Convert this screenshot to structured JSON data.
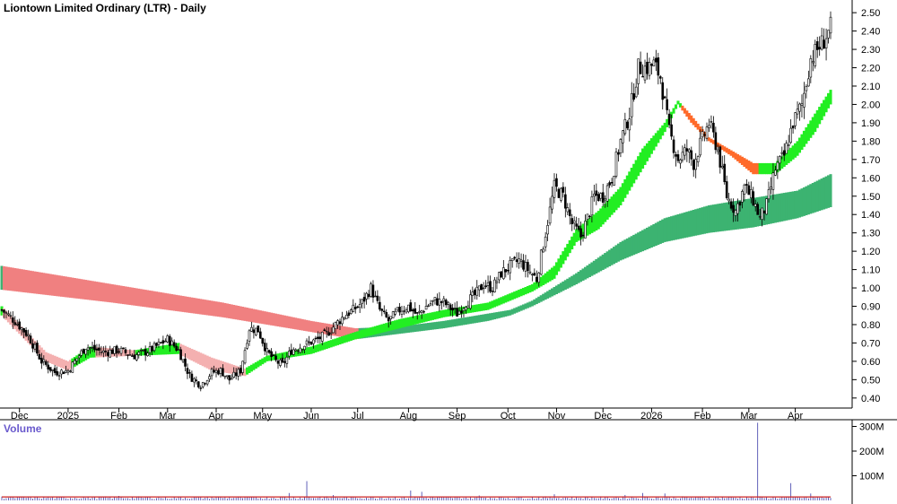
{
  "chart_data": {
    "type": "candlestick",
    "title": "Liontown Limited Ordinary (LTR) - Daily",
    "price_axis": {
      "ylim": [
        0.36,
        2.53
      ],
      "ticks": [
        "2.50",
        "2.40",
        "2.30",
        "2.20",
        "2.10",
        "2.00",
        "1.90",
        "1.80",
        "1.70",
        "1.60",
        "1.50",
        "1.40",
        "1.30",
        "1.20",
        "1.10",
        "1.00",
        "0.90",
        "0.80",
        "0.70",
        "0.60",
        "0.50",
        "0.40"
      ],
      "tick_values": [
        2.5,
        2.4,
        2.3,
        2.2,
        2.1,
        2.0,
        1.9,
        1.8,
        1.7,
        1.6,
        1.5,
        1.4,
        1.3,
        1.2,
        1.1,
        1.0,
        0.9,
        0.8,
        0.7,
        0.6,
        0.5,
        0.4
      ]
    },
    "time_axis": {
      "labels": [
        "Dec",
        "2025",
        "Feb",
        "Mar",
        "Apr",
        "May",
        "Jun",
        "Jul",
        "Aug",
        "Sep",
        "Oct",
        "Nov",
        "Dec",
        "2026",
        "Feb",
        "Mar",
        "Apr"
      ],
      "label_index": [
        8,
        30,
        53,
        75,
        97,
        118,
        140,
        161,
        184,
        206,
        229,
        251,
        272,
        294,
        317,
        338,
        359
      ]
    },
    "close_series": {
      "index": [
        0,
        6,
        12,
        18,
        24,
        30,
        38,
        46,
        53,
        60,
        67,
        75,
        80,
        85,
        90,
        95,
        99,
        103,
        108,
        112,
        116,
        120,
        124,
        127,
        131,
        135,
        139,
        143,
        147,
        151,
        155,
        159,
        163,
        167,
        171,
        175,
        180,
        184,
        188,
        192,
        196,
        200,
        206,
        210,
        214,
        218,
        222,
        226,
        230,
        234,
        238,
        242,
        246,
        250,
        254,
        258,
        262,
        265,
        268,
        272,
        276,
        280,
        284,
        288,
        292,
        295,
        298,
        302,
        306,
        310,
        313,
        316,
        320,
        324,
        328,
        332,
        336,
        340,
        343,
        346,
        350,
        354,
        358,
        362,
        366,
        369,
        372,
        375
      ],
      "values": [
        0.88,
        0.82,
        0.74,
        0.6,
        0.54,
        0.55,
        0.68,
        0.65,
        0.66,
        0.63,
        0.66,
        0.72,
        0.66,
        0.52,
        0.47,
        0.54,
        0.55,
        0.5,
        0.55,
        0.78,
        0.77,
        0.65,
        0.6,
        0.58,
        0.66,
        0.68,
        0.7,
        0.72,
        0.75,
        0.8,
        0.85,
        0.88,
        0.92,
        1.0,
        0.88,
        0.82,
        0.88,
        0.9,
        0.85,
        0.9,
        0.93,
        0.92,
        0.86,
        0.92,
        0.96,
        1.02,
        1.0,
        1.08,
        1.12,
        1.15,
        1.1,
        1.05,
        1.3,
        1.55,
        1.5,
        1.35,
        1.28,
        1.38,
        1.5,
        1.5,
        1.6,
        1.8,
        1.95,
        2.2,
        2.2,
        2.22,
        2.15,
        1.85,
        1.7,
        1.75,
        1.68,
        1.78,
        1.9,
        1.75,
        1.5,
        1.42,
        1.55,
        1.48,
        1.38,
        1.45,
        1.65,
        1.72,
        1.9,
        2.0,
        2.25,
        2.3,
        2.35,
        2.42
      ]
    },
    "band_short": {
      "index": [
        0,
        20,
        30,
        40,
        60,
        80,
        95,
        110,
        120,
        140,
        160,
        180,
        200,
        220,
        240,
        250,
        260,
        270,
        280,
        290,
        300,
        306,
        312,
        320,
        330,
        340,
        350,
        360,
        368,
        375
      ],
      "lower": [
        0.85,
        0.6,
        0.55,
        0.62,
        0.63,
        0.64,
        0.55,
        0.52,
        0.6,
        0.64,
        0.72,
        0.78,
        0.84,
        0.88,
        0.98,
        1.05,
        1.25,
        1.32,
        1.45,
        1.65,
        1.85,
        2.0,
        1.9,
        1.8,
        1.72,
        1.62,
        1.62,
        1.72,
        1.85,
        2.0
      ],
      "upper": [
        0.9,
        0.65,
        0.6,
        0.68,
        0.66,
        0.7,
        0.62,
        0.56,
        0.63,
        0.68,
        0.76,
        0.83,
        0.88,
        0.92,
        1.02,
        1.12,
        1.32,
        1.42,
        1.55,
        1.76,
        1.9,
        2.02,
        1.94,
        1.82,
        1.75,
        1.68,
        1.68,
        1.8,
        1.95,
        2.08
      ]
    },
    "band_long": {
      "index": [
        0,
        50,
        100,
        140,
        160,
        180,
        200,
        220,
        230,
        240,
        260,
        280,
        300,
        320,
        340,
        360,
        375
      ],
      "lower": [
        0.99,
        0.92,
        0.84,
        0.76,
        0.72,
        0.75,
        0.78,
        0.82,
        0.85,
        0.9,
        1.02,
        1.15,
        1.25,
        1.3,
        1.33,
        1.38,
        1.44
      ],
      "upper": [
        1.12,
        1.02,
        0.92,
        0.82,
        0.78,
        0.79,
        0.82,
        0.86,
        0.88,
        0.93,
        1.08,
        1.25,
        1.38,
        1.45,
        1.49,
        1.53,
        1.62
      ]
    },
    "volume": {
      "title": "Volume",
      "ticks": [
        "300M",
        "200M",
        "100M"
      ],
      "tick_values": [
        300,
        200,
        100
      ],
      "ylim": [
        0,
        320
      ],
      "spikes": [
        {
          "index": 53,
          "value": 18
        },
        {
          "index": 99,
          "value": 15
        },
        {
          "index": 130,
          "value": 30
        },
        {
          "index": 138,
          "value": 78
        },
        {
          "index": 150,
          "value": 22
        },
        {
          "index": 185,
          "value": 40
        },
        {
          "index": 190,
          "value": 35
        },
        {
          "index": 216,
          "value": 20
        },
        {
          "index": 250,
          "value": 25
        },
        {
          "index": 282,
          "value": 22
        },
        {
          "index": 290,
          "value": 30
        },
        {
          "index": 300,
          "value": 28
        },
        {
          "index": 342,
          "value": 315
        },
        {
          "index": 357,
          "value": 70
        },
        {
          "index": 366,
          "value": 28
        }
      ],
      "base_level": 12
    },
    "colors": {
      "long_band_up": "#3cb371",
      "long_band_down": "#f08080",
      "short_band_up": "#22ee22",
      "short_band_down_dark": "#ff6a2a",
      "short_band_down_light": "#f4b0b0",
      "candle": "#000000",
      "volume_bar": "#3a3aa8",
      "volume_avg": "#cc2222",
      "volume_title": "#6a5acd"
    }
  }
}
